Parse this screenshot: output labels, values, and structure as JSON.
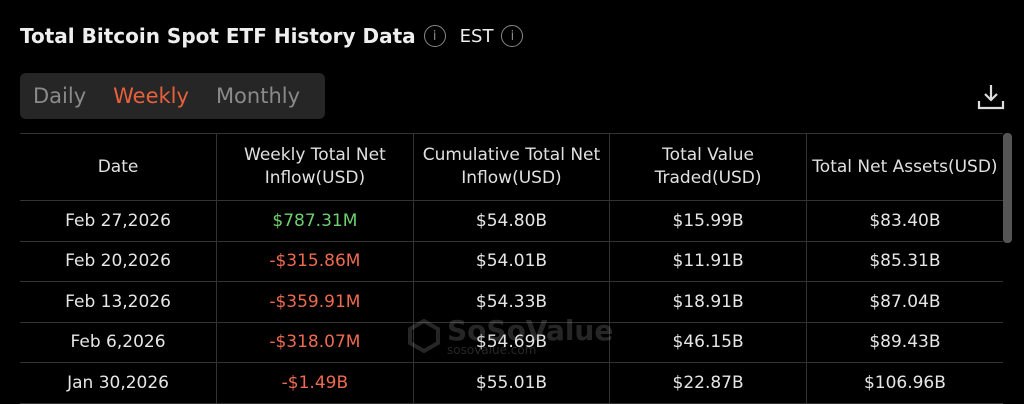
{
  "header": {
    "title": "Total Bitcoin Spot ETF History Data",
    "timezone": "EST"
  },
  "tabs": [
    {
      "label": "Daily",
      "active": false
    },
    {
      "label": "Weekly",
      "active": true
    },
    {
      "label": "Monthly",
      "active": false
    }
  ],
  "colors": {
    "accent": "#e8603c",
    "positive": "#6fcf6f",
    "negative": "#ee6a50"
  },
  "table": {
    "columns": [
      "Date",
      "Weekly Total Net Inflow(USD)",
      "Cumulative Total Net Inflow(USD)",
      "Total Value Traded(USD)",
      "Total Net Assets(USD)"
    ],
    "rows": [
      [
        "Feb 27,2026",
        "$787.31M",
        "$54.80B",
        "$15.99B",
        "$83.40B"
      ],
      [
        "Feb 20,2026",
        "-$315.86M",
        "$54.01B",
        "$11.91B",
        "$85.31B"
      ],
      [
        "Feb 13,2026",
        "-$359.91M",
        "$54.33B",
        "$18.91B",
        "$87.04B"
      ],
      [
        "Feb 6,2026",
        "-$318.07M",
        "$54.69B",
        "$46.15B",
        "$89.43B"
      ],
      [
        "Jan 30,2026",
        "-$1.49B",
        "$55.01B",
        "$22.87B",
        "$106.96B"
      ]
    ]
  },
  "watermark": {
    "brand": "SoSoValue",
    "site": "sosovalue.com"
  }
}
